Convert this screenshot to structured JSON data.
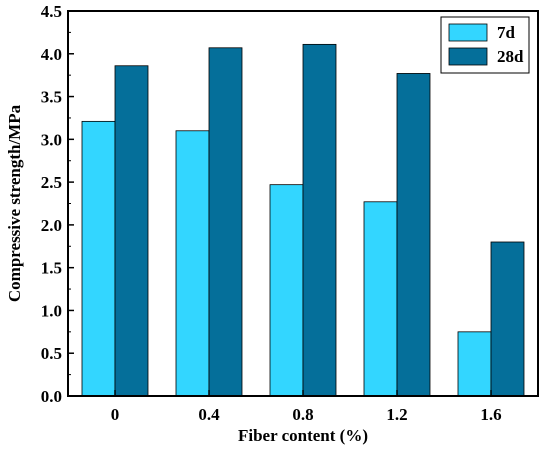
{
  "chart_data": {
    "type": "bar",
    "title": "",
    "xlabel": "Fiber content (%)",
    "ylabel": "Compressive strength/MPa",
    "categories": [
      "0",
      "0.4",
      "0.8",
      "1.2",
      "1.6"
    ],
    "ylim": [
      0,
      4.5
    ],
    "yticks": [
      "0.0",
      "0.5",
      "1.0",
      "1.5",
      "2.0",
      "2.5",
      "3.0",
      "3.5",
      "4.0",
      "4.5"
    ],
    "grid": false,
    "legend_position": "top-right",
    "series": [
      {
        "name": "7d",
        "color": "#33d6ff",
        "values": [
          3.21,
          3.1,
          2.47,
          2.27,
          0.75
        ]
      },
      {
        "name": "28d",
        "color": "#056f9a",
        "values": [
          3.86,
          4.07,
          4.11,
          3.77,
          1.8
        ]
      }
    ]
  }
}
